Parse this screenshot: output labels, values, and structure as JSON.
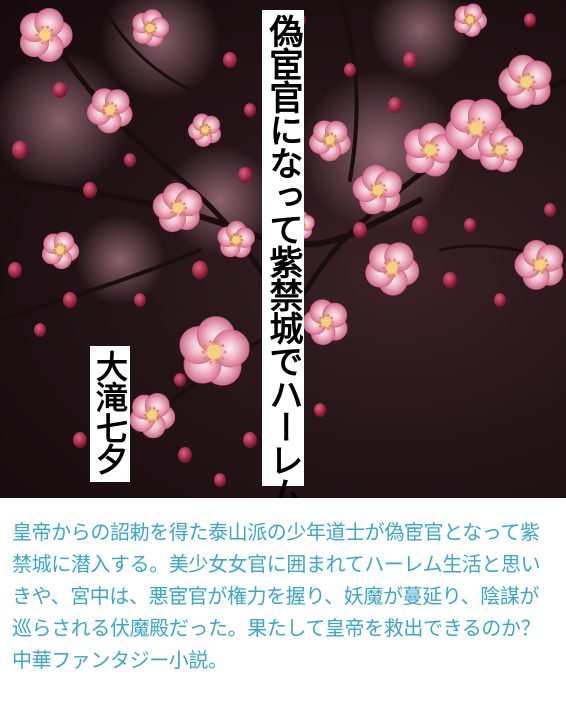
{
  "cover": {
    "title": "偽宦官になって紫禁城でハーレム生活",
    "author": "大滝七夕",
    "blossom_colors": [
      "#f2aac4",
      "#e688a8",
      "#c94a6e",
      "#8a1f3c"
    ],
    "background_color": "#241418"
  },
  "description": {
    "text": "皇帝からの詔勅を得た泰山派の少年道士が偽宦官となって紫禁城に潜入する。美少女女官に囲まれてハーレム生活と思いきや、宮中は、悪宦官が権力を握り、妖魔が蔓延り、陰謀が巡らされる伏魔殿だった。果たして皇帝を救出できるのか？中華ファンタジー小説。",
    "color": "#3aa7c9"
  }
}
